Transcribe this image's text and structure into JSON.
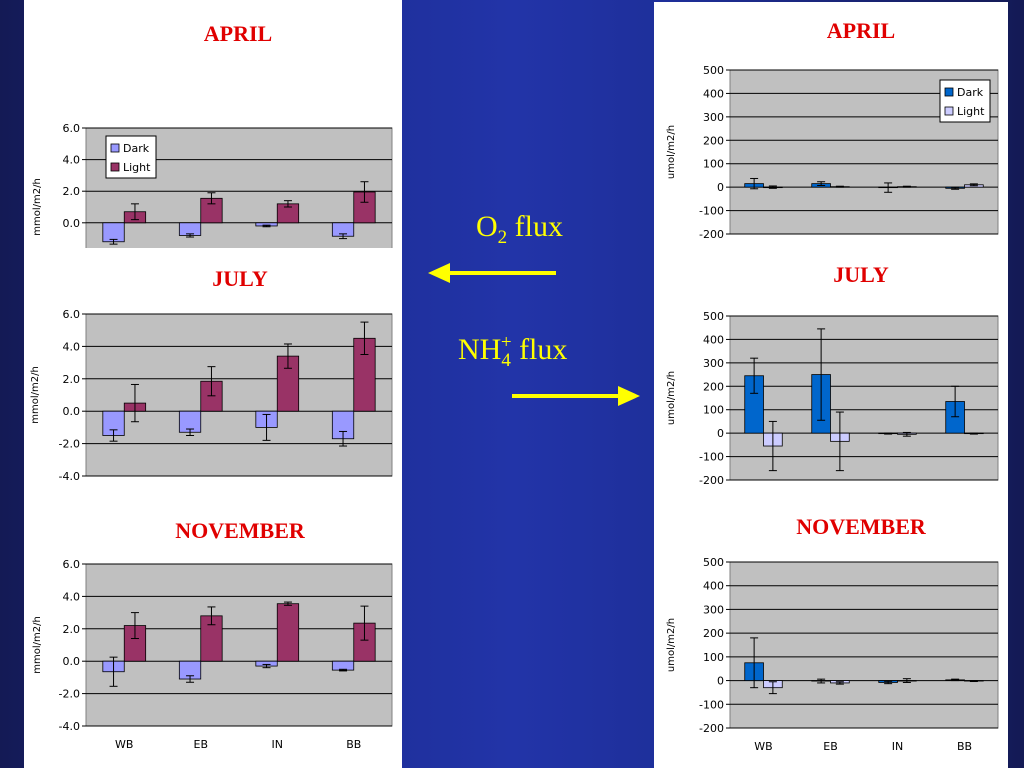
{
  "center": {
    "o2_main": "O",
    "o2_sub": "2",
    "o2_rest": " flux",
    "nh4_main": "NH",
    "nh4_sub": "4",
    "nh4_sup": "+",
    "nh4_rest": " flux",
    "arrow_color": "#ffff00"
  },
  "colors": {
    "o2_dark": "#9999ff",
    "o2_light": "#993366",
    "nh4_dark": "#0066cc",
    "nh4_light": "#ccccff",
    "plot_bg": "#c0c0c0",
    "title_red": "#e00000"
  },
  "chart_data": [
    {
      "id": "o2-april",
      "type": "bar",
      "title": "APRIL",
      "categories": [
        "WB",
        "EB",
        "IN",
        "BB"
      ],
      "show_categories": false,
      "ylabel": "mmol/m2/h",
      "ylim": [
        -4,
        6
      ],
      "ticks": [
        6,
        4,
        2,
        0,
        -2,
        -4
      ],
      "tick_labels": [
        "6.0",
        "4.0",
        "2.0",
        "0.0",
        "-2.0",
        "-4.0"
      ],
      "legend": {
        "placement": "top-left",
        "entries": [
          "Dark",
          "Light"
        ]
      },
      "series": [
        {
          "name": "Dark",
          "values": [
            -1.2,
            -0.8,
            -0.2,
            -0.85
          ],
          "errors": [
            0.15,
            0.1,
            0.05,
            0.15
          ]
        },
        {
          "name": "Light",
          "values": [
            0.7,
            1.55,
            1.2,
            1.95
          ],
          "errors": [
            0.5,
            0.35,
            0.2,
            0.65
          ]
        }
      ]
    },
    {
      "id": "o2-july",
      "type": "bar",
      "title": "JULY",
      "categories": [
        "WB",
        "EB",
        "IN",
        "BB"
      ],
      "show_categories": false,
      "ylabel": "mmol/m2/h",
      "ylim": [
        -4,
        6
      ],
      "ticks": [
        6,
        4,
        2,
        0,
        -2,
        -4
      ],
      "tick_labels": [
        "6.0",
        "4.0",
        "2.0",
        "0.0",
        "-2.0",
        "-4.0"
      ],
      "series": [
        {
          "name": "Dark",
          "values": [
            -1.5,
            -1.3,
            -1.0,
            -1.7
          ],
          "errors": [
            0.35,
            0.2,
            0.8,
            0.45
          ]
        },
        {
          "name": "Light",
          "values": [
            0.5,
            1.85,
            3.4,
            4.5
          ],
          "errors": [
            1.15,
            0.9,
            0.75,
            1.0
          ]
        }
      ]
    },
    {
      "id": "o2-november",
      "type": "bar",
      "title": "NOVEMBER",
      "categories": [
        "WB",
        "EB",
        "IN",
        "BB"
      ],
      "show_categories": true,
      "ylabel": "mmol/m2/h",
      "ylim": [
        -4,
        6
      ],
      "ticks": [
        6,
        4,
        2,
        0,
        -2,
        -4
      ],
      "tick_labels": [
        "6.0",
        "4.0",
        "2.0",
        "0.0",
        "-2.0",
        "-4.0"
      ],
      "series": [
        {
          "name": "Dark",
          "values": [
            -0.65,
            -1.1,
            -0.3,
            -0.55
          ],
          "errors": [
            0.9,
            0.2,
            0.1,
            0.05
          ]
        },
        {
          "name": "Light",
          "values": [
            2.2,
            2.8,
            3.55,
            2.35
          ],
          "errors": [
            0.8,
            0.55,
            0.1,
            1.05
          ]
        }
      ]
    },
    {
      "id": "nh4-april",
      "type": "bar",
      "title": "APRIL",
      "categories": [
        "WB",
        "EB",
        "IN",
        "BB"
      ],
      "show_categories": false,
      "ylabel": "umol/m2/h",
      "ylim": [
        -200,
        500
      ],
      "ticks": [
        500,
        400,
        300,
        200,
        100,
        0,
        -100,
        -200
      ],
      "tick_labels": [
        "500",
        "400",
        "300",
        "200",
        "100",
        "0",
        "-100",
        "-200"
      ],
      "legend": {
        "placement": "top-right",
        "entries": [
          "Dark",
          "Light"
        ]
      },
      "series": [
        {
          "name": "Dark",
          "values": [
            15,
            15,
            -2,
            -5
          ],
          "errors": [
            22,
            8,
            20,
            4
          ]
        },
        {
          "name": "Light",
          "values": [
            0,
            2,
            2,
            10
          ],
          "errors": [
            5,
            2,
            2,
            4
          ]
        }
      ]
    },
    {
      "id": "nh4-july",
      "type": "bar",
      "title": "JULY",
      "categories": [
        "WB",
        "EB",
        "IN",
        "BB"
      ],
      "show_categories": false,
      "ylabel": "umol/m2/h",
      "ylim": [
        -200,
        500
      ],
      "ticks": [
        500,
        400,
        300,
        200,
        100,
        0,
        -100,
        -200
      ],
      "tick_labels": [
        "500",
        "400",
        "300",
        "200",
        "100",
        "0",
        "-100",
        "-200"
      ],
      "series": [
        {
          "name": "Dark",
          "values": [
            245,
            250,
            -2,
            135
          ],
          "errors": [
            75,
            195,
            2,
            65
          ]
        },
        {
          "name": "Light",
          "values": [
            -55,
            -35,
            -5,
            -2
          ],
          "errors": [
            105,
            125,
            8,
            2
          ]
        }
      ]
    },
    {
      "id": "nh4-november",
      "type": "bar",
      "title": "NOVEMBER",
      "categories": [
        "WB",
        "EB",
        "IN",
        "BB"
      ],
      "show_categories": true,
      "ylabel": "umol/m2/h",
      "ylim": [
        -200,
        500
      ],
      "ticks": [
        500,
        400,
        300,
        200,
        100,
        0,
        -100,
        -200
      ],
      "tick_labels": [
        "500",
        "400",
        "300",
        "200",
        "100",
        "0",
        "-100",
        "-200"
      ],
      "series": [
        {
          "name": "Dark",
          "values": [
            75,
            -2,
            -8,
            3
          ],
          "errors": [
            105,
            8,
            5,
            3
          ]
        },
        {
          "name": "Light",
          "values": [
            -30,
            -10,
            0,
            -2
          ],
          "errors": [
            25,
            5,
            8,
            2
          ]
        }
      ]
    }
  ]
}
